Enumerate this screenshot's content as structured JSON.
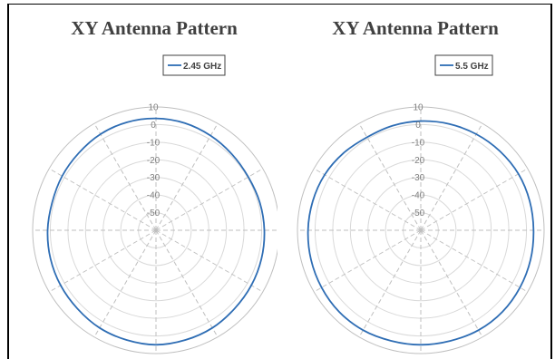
{
  "chart_data": [
    {
      "type": "polar-line",
      "title": "XY Antenna Pattern",
      "legend_position": "top-right",
      "series": [
        {
          "name": "2.45 GHz",
          "color": "#2e6db4",
          "angles_deg": [
            0,
            15,
            30,
            45,
            60,
            75,
            90,
            105,
            120,
            135,
            150,
            165,
            180,
            195,
            210,
            225,
            240,
            255,
            270,
            285,
            300,
            315,
            330,
            345
          ],
          "values": [
            3.5,
            3,
            2,
            1,
            0.5,
            1,
            1.5,
            2,
            2.5,
            3,
            4,
            4.5,
            5,
            4.5,
            4,
            3,
            2.5,
            2,
            1.5,
            1,
            1.5,
            2,
            3,
            3.5
          ]
        }
      ],
      "radial_axis": {
        "range": [
          -60,
          10
        ],
        "ticks": [
          10,
          0,
          -10,
          -20,
          -30,
          -40,
          -50
        ]
      },
      "angular_spokes_deg": 30,
      "grid": true
    },
    {
      "type": "polar-line",
      "title": "XY Antenna Pattern",
      "legend_position": "top-right",
      "series": [
        {
          "name": "5.5 GHz",
          "color": "#2e6db4",
          "angles_deg": [
            0,
            15,
            30,
            45,
            60,
            75,
            90,
            105,
            120,
            135,
            150,
            165,
            180,
            195,
            210,
            225,
            240,
            255,
            270,
            285,
            300,
            315,
            330,
            345
          ],
          "values": [
            2,
            2.5,
            3,
            3.5,
            4,
            4,
            4,
            4.5,
            5,
            5.5,
            5.5,
            5,
            5,
            5,
            5.5,
            5.5,
            5,
            4.5,
            4,
            3.5,
            3,
            2,
            1,
            1.5
          ]
        }
      ],
      "radial_axis": {
        "range": [
          -60,
          10
        ],
        "ticks": [
          10,
          0,
          -10,
          -20,
          -30,
          -40,
          -50
        ]
      },
      "angular_spokes_deg": 30,
      "grid": true
    }
  ]
}
